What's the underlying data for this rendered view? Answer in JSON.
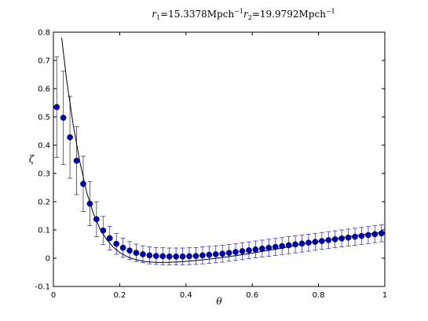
{
  "chart_data": {
    "type": "scatter",
    "title_parts": {
      "r1_symbol": "r",
      "r1_sub": "1",
      "r1_text": "=15.3378Mpch",
      "r1_sup": "−1",
      "r2_symbol": "r",
      "r2_sub": "2",
      "r2_text": "=19.9792Mpch",
      "r2_sup": "−1"
    },
    "xlabel": "θ",
    "ylabel": "ζ",
    "xlim": [
      0,
      1
    ],
    "ylim": [
      -0.1,
      0.8
    ],
    "x_ticks": [
      0,
      0.2,
      0.4,
      0.6,
      0.8,
      1
    ],
    "x_tick_labels": [
      "0",
      "0.2",
      "0.4",
      "0.6",
      "0.8",
      "1"
    ],
    "y_ticks": [
      -0.1,
      0,
      0.1,
      0.2,
      0.3,
      0.4,
      0.5,
      0.6,
      0.7,
      0.8
    ],
    "y_tick_labels": [
      "-0.1",
      "0",
      "0.1",
      "0.2",
      "0.3",
      "0.4",
      "0.5",
      "0.6",
      "0.7",
      "0.8"
    ],
    "grid": false,
    "colors": {
      "points": "#0000b3",
      "errorbars_early": "#404040",
      "errorbars_late": "#3535c8",
      "model_line": "#000000",
      "axes": "#000000"
    },
    "points": {
      "x": [
        0.01,
        0.03,
        0.05,
        0.07,
        0.09,
        0.11,
        0.13,
        0.15,
        0.17,
        0.19,
        0.21,
        0.23,
        0.25,
        0.27,
        0.29,
        0.31,
        0.33,
        0.35,
        0.37,
        0.39,
        0.41,
        0.43,
        0.45,
        0.47,
        0.49,
        0.51,
        0.53,
        0.55,
        0.57,
        0.59,
        0.61,
        0.63,
        0.65,
        0.67,
        0.69,
        0.71,
        0.73,
        0.75,
        0.77,
        0.79,
        0.81,
        0.83,
        0.85,
        0.87,
        0.89,
        0.91,
        0.93,
        0.95,
        0.97,
        0.99
      ],
      "y": [
        0.535,
        0.497,
        0.428,
        0.345,
        0.263,
        0.193,
        0.138,
        0.098,
        0.071,
        0.051,
        0.037,
        0.027,
        0.019,
        0.014,
        0.01,
        0.008,
        0.007,
        0.006,
        0.006,
        0.006,
        0.007,
        0.008,
        0.01,
        0.012,
        0.014,
        0.016,
        0.019,
        0.022,
        0.025,
        0.028,
        0.031,
        0.034,
        0.037,
        0.04,
        0.043,
        0.046,
        0.049,
        0.052,
        0.055,
        0.058,
        0.061,
        0.064,
        0.067,
        0.07,
        0.073,
        0.076,
        0.079,
        0.082,
        0.085,
        0.088
      ],
      "err": [
        0.178,
        0.165,
        0.145,
        0.12,
        0.098,
        0.078,
        0.062,
        0.05,
        0.042,
        0.037,
        0.034,
        0.032,
        0.031,
        0.03,
        0.03,
        0.03,
        0.03,
        0.03,
        0.03,
        0.03,
        0.03,
        0.03,
        0.03,
        0.03,
        0.03,
        0.03,
        0.03,
        0.03,
        0.03,
        0.03,
        0.03,
        0.03,
        0.03,
        0.03,
        0.03,
        0.03,
        0.03,
        0.03,
        0.03,
        0.03,
        0.03,
        0.03,
        0.03,
        0.03,
        0.03,
        0.03,
        0.03,
        0.03,
        0.03,
        0.03
      ]
    },
    "model_line": {
      "x": [
        0.025,
        0.04,
        0.06,
        0.08,
        0.1,
        0.12,
        0.14,
        0.16,
        0.18,
        0.2,
        0.22,
        0.24,
        0.26,
        0.28,
        0.3,
        0.32,
        0.34,
        0.36,
        0.38,
        0.4,
        0.45,
        0.5,
        0.55,
        0.6,
        0.65,
        0.7,
        0.75,
        0.8,
        0.85,
        0.9,
        0.95,
        1.0
      ],
      "y": [
        0.78,
        0.63,
        0.47,
        0.34,
        0.235,
        0.16,
        0.105,
        0.067,
        0.04,
        0.02,
        0.007,
        -0.002,
        -0.008,
        -0.012,
        -0.014,
        -0.015,
        -0.015,
        -0.014,
        -0.013,
        -0.011,
        -0.006,
        0.001,
        0.009,
        0.018,
        0.028,
        0.038,
        0.049,
        0.059,
        0.069,
        0.078,
        0.086,
        0.092
      ]
    }
  }
}
